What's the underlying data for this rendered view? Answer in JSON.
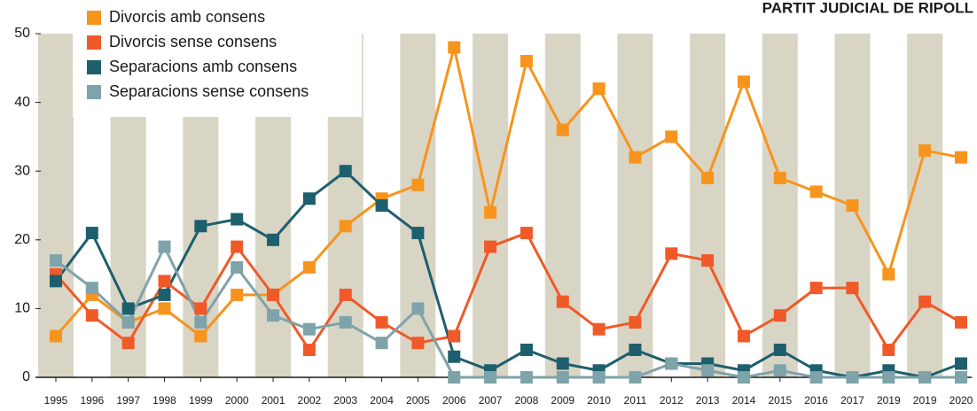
{
  "chart_data": {
    "type": "line",
    "title": "PARTIT JUDICIAL DE RIPOLL",
    "categories": [
      "1995",
      "1996",
      "1997",
      "1998",
      "1999",
      "2000",
      "2001",
      "2002",
      "2003",
      "2004",
      "2005",
      "2006",
      "2007",
      "2008",
      "2009",
      "2010",
      "2011",
      "2012",
      "2013",
      "2014",
      "2015",
      "2016",
      "2017",
      "2019",
      "2019",
      "2020"
    ],
    "series": [
      {
        "name": "Divorcis amb consens",
        "color": "#f7941d",
        "values": [
          6,
          12,
          8,
          10,
          6,
          12,
          12,
          16,
          22,
          26,
          28,
          48,
          24,
          46,
          36,
          42,
          32,
          35,
          29,
          43,
          29,
          27,
          25,
          15,
          33,
          32
        ]
      },
      {
        "name": "Divorcis sense consens",
        "color": "#ef5a28",
        "values": [
          15,
          9,
          5,
          14,
          10,
          19,
          12,
          4,
          12,
          8,
          5,
          6,
          19,
          21,
          11,
          7,
          8,
          18,
          17,
          6,
          9,
          13,
          13,
          4,
          11,
          8
        ]
      },
      {
        "name": "Separacions amb consens",
        "color": "#1e5f6e",
        "values": [
          14,
          21,
          10,
          12,
          22,
          23,
          20,
          26,
          30,
          25,
          21,
          3,
          1,
          4,
          2,
          1,
          4,
          2,
          2,
          1,
          4,
          1,
          0,
          1,
          0,
          2
        ]
      },
      {
        "name": "Separacions sense consens",
        "color": "#7fa3aa",
        "values": [
          17,
          13,
          8,
          19,
          8,
          16,
          9,
          7,
          8,
          5,
          10,
          0,
          0,
          0,
          0,
          0,
          0,
          2,
          1,
          0,
          1,
          0,
          0,
          0,
          0,
          0
        ]
      }
    ],
    "ylim": [
      0,
      50
    ],
    "yticks": [
      0,
      10,
      20,
      30,
      40,
      50
    ]
  }
}
